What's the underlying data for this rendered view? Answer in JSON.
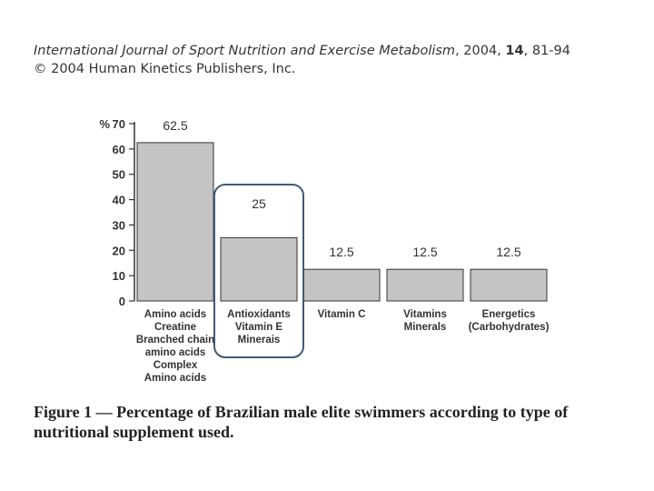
{
  "citation": {
    "journal": "International Journal of Sport Nutrition and Exercise Metabolism",
    "year": "2004",
    "volume": "14",
    "pages": "81-94",
    "copyright": "© 2004 Human Kinetics Publishers, Inc."
  },
  "caption": {
    "label": "Figure 1 —",
    "text": "Percentage of Brazilian male elite swimmers according to type of nutritional supplement used."
  },
  "colors": {
    "bar_fill": "#c4c4c4",
    "bar_stroke": "#333333",
    "highlight": "#3d5a7a"
  },
  "chart_data": {
    "type": "bar",
    "title": "",
    "xlabel": "",
    "ylabel": "%",
    "ylim": [
      0,
      70
    ],
    "yticks": [
      0,
      10,
      20,
      30,
      40,
      50,
      60,
      70
    ],
    "highlighted_index": 1,
    "categories": [
      [
        "Amino acids",
        "Creatine",
        "Branched chain",
        "amino acids",
        "Complex",
        "Amino acids"
      ],
      [
        "Antioxidants",
        "Vitamin E",
        "Minerais"
      ],
      [
        "Vitamin C"
      ],
      [
        "Vitamins",
        "Minerals"
      ],
      [
        "Energetics",
        "(Carbohydrates)"
      ]
    ],
    "values": [
      62.5,
      25,
      12.5,
      12.5,
      12.5
    ],
    "data_labels": [
      "62.5",
      "25",
      "12.5",
      "12.5",
      "12.5"
    ]
  }
}
